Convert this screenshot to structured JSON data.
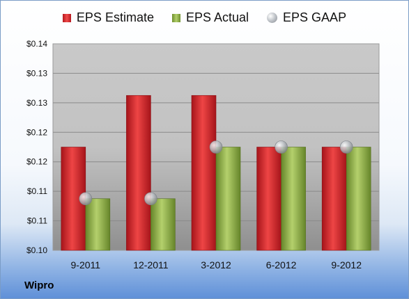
{
  "chart_data": {
    "type": "bar",
    "categories": [
      "9-2011",
      "12-2011",
      "3-2012",
      "6-2012",
      "9-2012"
    ],
    "series": [
      {
        "name": "EPS Estimate",
        "type": "bar",
        "color": "#d42a2a",
        "values": [
          0.12,
          0.13,
          0.13,
          0.12,
          0.12
        ]
      },
      {
        "name": "EPS Actual",
        "type": "bar",
        "color": "#94b447",
        "values": [
          0.11,
          0.11,
          0.12,
          0.12,
          0.12
        ]
      },
      {
        "name": "EPS GAAP",
        "type": "marker",
        "color": "#b8bcc2",
        "values": [
          0.11,
          0.11,
          0.12,
          0.12,
          0.12
        ]
      }
    ],
    "y_ticks": [
      "$0.10",
      "$0.11",
      "$0.11",
      "$0.12",
      "$0.12",
      "$0.13",
      "$0.13",
      "$0.14"
    ],
    "ylim": [
      0.1,
      0.14
    ],
    "grid": true,
    "legend_position": "top"
  },
  "legend": [
    {
      "label": "EPS Estimate",
      "kind": "bar-est"
    },
    {
      "label": "EPS Actual",
      "kind": "bar-act"
    },
    {
      "label": "EPS GAAP",
      "kind": "gaap"
    }
  ],
  "footer": {
    "company": "Wipro"
  }
}
